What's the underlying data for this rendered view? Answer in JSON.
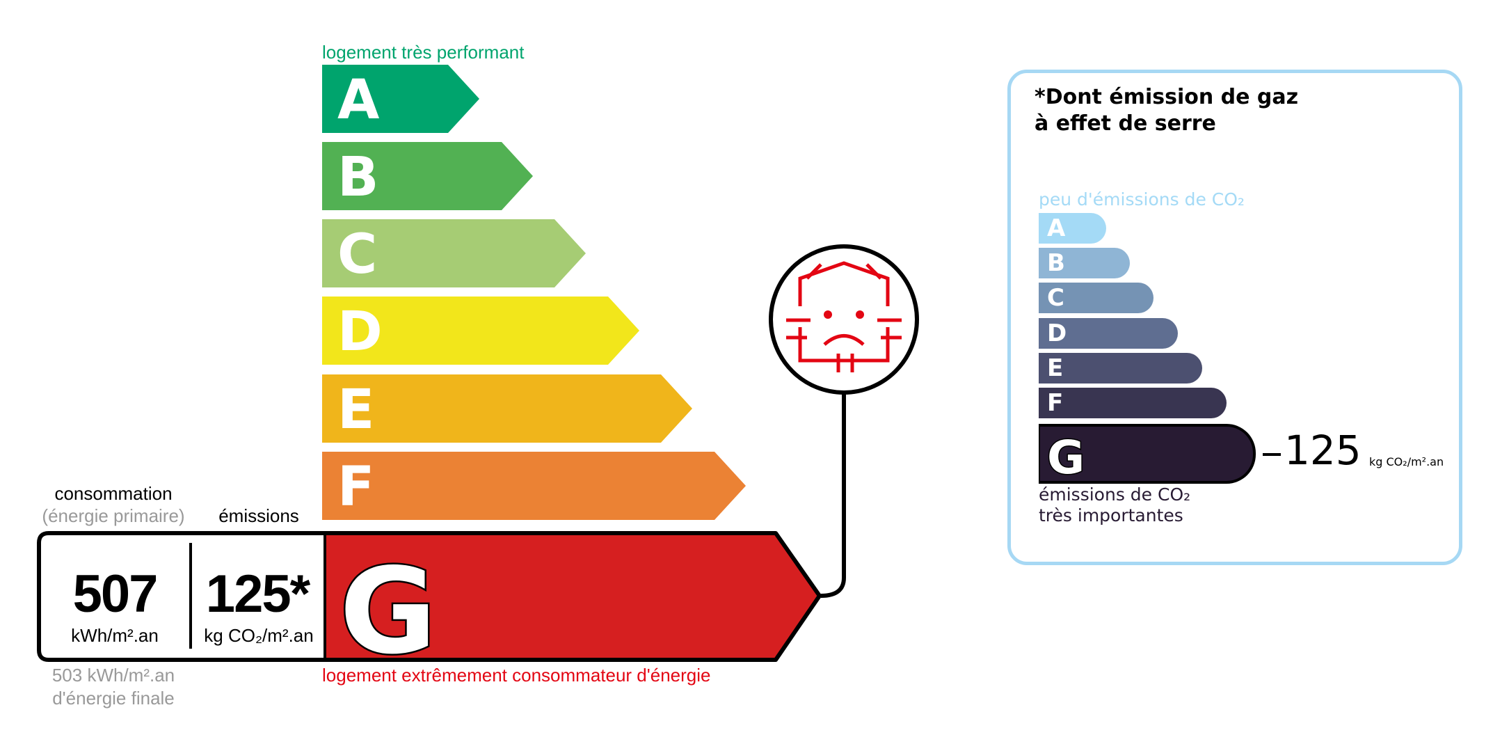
{
  "energy": {
    "top_label": "logement très performant",
    "bottom_label": "logement extrêmement consommateur d'énergie",
    "classes": [
      {
        "letter": "A",
        "color": "#00a46d"
      },
      {
        "letter": "B",
        "color": "#52b153"
      },
      {
        "letter": "C",
        "color": "#a6cc74"
      },
      {
        "letter": "D",
        "color": "#f2e61b"
      },
      {
        "letter": "E",
        "color": "#f0b51b"
      },
      {
        "letter": "F",
        "color": "#eb8234"
      },
      {
        "letter": "G",
        "color": "#d61f20"
      }
    ],
    "active_class": "G",
    "consumption_label": "consommation",
    "consumption_sublabel": "(énergie primaire)",
    "emissions_label": "émissions",
    "consumption_value": "507",
    "consumption_unit": "kWh/m².an",
    "emissions_value": "125*",
    "emissions_unit": "kg CO₂/m².an",
    "final_energy_value": "503 kWh/m².an",
    "final_energy_label": "d'énergie finale",
    "icon": "house-heat-loss-sad-icon"
  },
  "ges": {
    "title_line1": "*Dont émission de gaz",
    "title_line2": "à effet de serre",
    "top_label": "peu d'émissions de CO₂",
    "bottom_label_line1": "émissions de CO₂",
    "bottom_label_line2": "très importantes",
    "classes": [
      {
        "letter": "A",
        "color": "#a4daf6"
      },
      {
        "letter": "B",
        "color": "#8fb5d5"
      },
      {
        "letter": "C",
        "color": "#7593b4"
      },
      {
        "letter": "D",
        "color": "#5f6e91"
      },
      {
        "letter": "E",
        "color": "#4c5070"
      },
      {
        "letter": "F",
        "color": "#393551"
      },
      {
        "letter": "G",
        "color": "#281b33"
      }
    ],
    "active_class": "G",
    "value": "125",
    "unit": "kg CO₂/m².an",
    "border_color": "#a6d8f4"
  }
}
